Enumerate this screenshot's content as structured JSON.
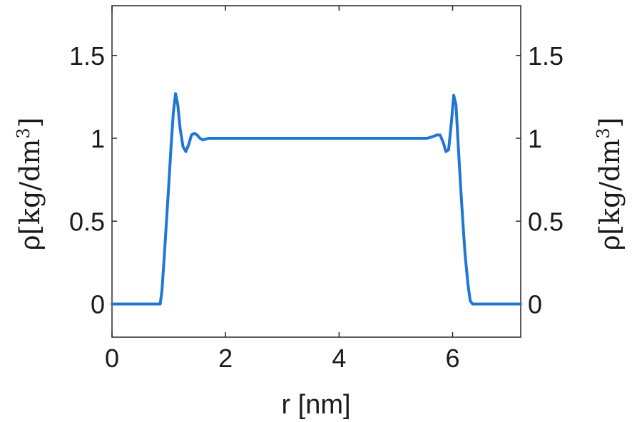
{
  "chart_data": {
    "type": "line",
    "title": "",
    "xlabel": "r [nm]",
    "ylabel_prefix": "ρ",
    "ylabel_units": "[kg/dm",
    "ylabel_exp": "3",
    "ylabel_close": "]",
    "xlim": [
      0,
      7.2
    ],
    "ylim": [
      -0.2,
      1.8
    ],
    "x_ticks": [
      0,
      2,
      4,
      6
    ],
    "x_tick_labels": [
      "0",
      "2",
      "4",
      "6"
    ],
    "y_ticks": [
      0,
      0.5,
      1,
      1.5
    ],
    "y_tick_labels": [
      "0",
      "0.5",
      "1",
      "1.5"
    ],
    "right_axis_mirrored": true,
    "grid": false,
    "line_color": "#1f77d4",
    "frame_color": "#262626",
    "series": [
      {
        "x": [
          0,
          0.85,
          0.88,
          0.92,
          0.96,
          1.0,
          1.04,
          1.08,
          1.12,
          1.16,
          1.2,
          1.25,
          1.3,
          1.35,
          1.4,
          1.45,
          1.5,
          1.55,
          1.6,
          1.7,
          1.8,
          2.0,
          2.5,
          3.0,
          3.5,
          4.0,
          4.5,
          5.0,
          5.4,
          5.55,
          5.65,
          5.72,
          5.78,
          5.84,
          5.88,
          5.93,
          5.98,
          6.02,
          6.06,
          6.1,
          6.14,
          6.18,
          6.22,
          6.27,
          6.31,
          6.35,
          7.2
        ],
        "y": [
          0,
          0,
          0.08,
          0.28,
          0.5,
          0.72,
          0.95,
          1.15,
          1.27,
          1.2,
          1.06,
          0.95,
          0.92,
          0.96,
          1.02,
          1.03,
          1.02,
          1.0,
          0.99,
          1.0,
          1.0,
          1.0,
          1.0,
          1.0,
          1.0,
          1.0,
          1.0,
          1.0,
          1.0,
          1.0,
          1.01,
          1.02,
          1.02,
          0.97,
          0.92,
          0.93,
          1.1,
          1.26,
          1.2,
          0.95,
          0.72,
          0.5,
          0.3,
          0.12,
          0.02,
          0,
          0
        ]
      }
    ]
  }
}
